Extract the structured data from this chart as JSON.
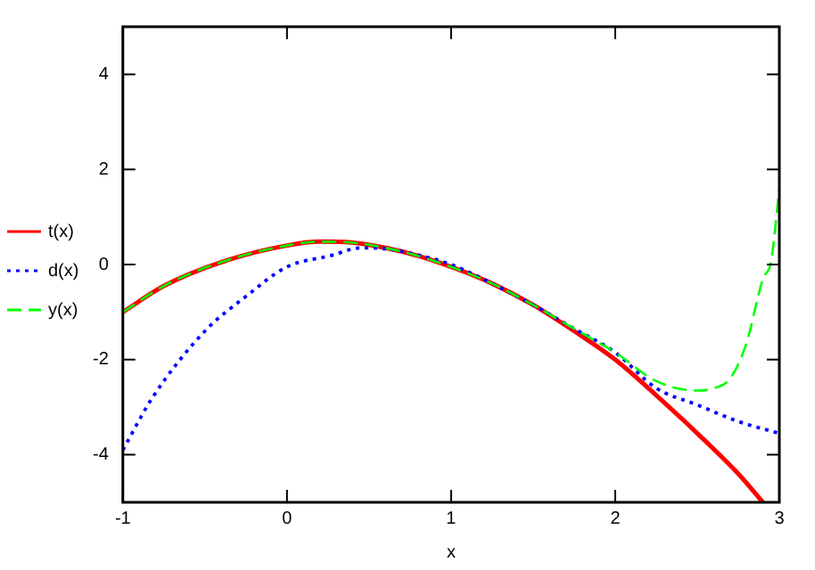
{
  "chart_data": {
    "type": "line",
    "xlabel": "x",
    "xlim": [
      -1,
      3
    ],
    "ylim": [
      -5,
      5
    ],
    "xticks": [
      -1,
      0,
      1,
      2,
      3
    ],
    "yticks": [
      -4,
      -2,
      0,
      2,
      4
    ],
    "grid": false,
    "legend": "left",
    "marker": "none",
    "series": [
      {
        "name": "t(x)",
        "color": "#ff0000",
        "line_style": "solid",
        "x": [
          -1,
          -0.75,
          -0.4,
          0,
          0.2,
          0.4,
          0.6,
          0.8,
          1,
          1.25,
          1.5,
          1.75,
          2,
          2.25,
          2.5,
          2.75,
          2.9
        ],
        "values": [
          -1.0,
          -0.45,
          0.05,
          0.4,
          0.48,
          0.46,
          0.35,
          0.18,
          -0.05,
          -0.4,
          -0.85,
          -1.4,
          -2.0,
          -2.75,
          -3.55,
          -4.4,
          -5.0
        ]
      },
      {
        "name": "d(x)",
        "color": "#0000ff",
        "line_style": "dotted",
        "x": [
          -1,
          -0.82,
          -0.5,
          -0.25,
          0,
          0.27,
          0.45,
          0.6,
          0.8,
          1,
          1.25,
          1.5,
          1.75,
          2,
          2.25,
          2.5,
          2.75,
          3
        ],
        "values": [
          -3.9,
          -2.8,
          -1.4,
          -0.67,
          -0.05,
          0.19,
          0.35,
          0.33,
          0.2,
          0.0,
          -0.4,
          -0.85,
          -1.35,
          -1.85,
          -2.6,
          -2.95,
          -3.3,
          -3.55
        ]
      },
      {
        "name": "y(x)",
        "color": "#00ff00",
        "line_style": "dashed",
        "x": [
          -1,
          -0.75,
          -0.4,
          0,
          0.2,
          0.4,
          0.6,
          0.8,
          1,
          1.25,
          1.5,
          1.75,
          2,
          2.25,
          2.5,
          2.6,
          2.7,
          2.8,
          2.9,
          2.95,
          3
        ],
        "values": [
          -1.0,
          -0.45,
          0.05,
          0.4,
          0.48,
          0.46,
          0.35,
          0.18,
          -0.05,
          -0.4,
          -0.85,
          -1.35,
          -1.85,
          -2.45,
          -2.65,
          -2.6,
          -2.4,
          -1.65,
          -0.3,
          0.07,
          1.6
        ]
      }
    ]
  }
}
